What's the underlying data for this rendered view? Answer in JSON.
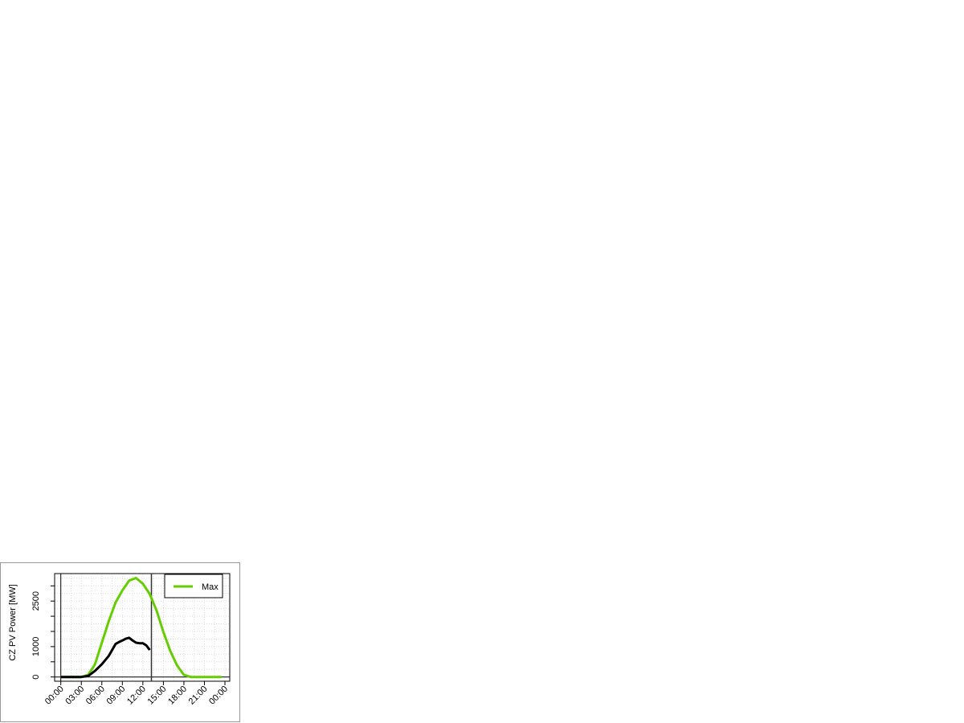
{
  "chart_data": {
    "type": "line",
    "title": "",
    "xlabel": "",
    "ylabel": "CZ PV Power [MW]",
    "x_ticks": [
      "00:00",
      "03:00",
      "06:00",
      "09:00",
      "12:00",
      "15:00",
      "18:00",
      "21:00",
      "00:00"
    ],
    "y_ticks": [
      0,
      500,
      1000,
      1500,
      2000,
      2500,
      3000
    ],
    "y_tick_labels": [
      "0",
      "1000",
      "2500"
    ],
    "xlim_hours": [
      -1,
      25
    ],
    "ylim": [
      -150,
      3400
    ],
    "grid": true,
    "legend_placement": "top-right",
    "vertical_marker_hour": 13.25,
    "series": [
      {
        "name": "Max",
        "color": "#66cc00",
        "x": [
          0,
          1,
          2,
          3,
          4,
          5,
          6,
          7,
          8,
          9,
          10,
          11,
          12,
          13,
          14,
          15,
          16,
          17,
          18,
          19,
          20,
          21,
          22,
          23,
          23.5
        ],
        "y": [
          0,
          0,
          0,
          0,
          70,
          420,
          1130,
          1830,
          2450,
          2850,
          3175,
          3260,
          3070,
          2730,
          2190,
          1480,
          860,
          380,
          70,
          0,
          0,
          0,
          0,
          0,
          0
        ]
      },
      {
        "color": "#000000",
        "x": [
          0,
          1,
          2,
          3,
          4,
          5,
          6,
          7,
          8,
          8.5,
          9,
          9.5,
          10,
          10.5,
          11,
          11.5,
          12,
          12.5,
          13
        ],
        "y": [
          0,
          0,
          0,
          0,
          35,
          200,
          420,
          690,
          1085,
          1150,
          1200,
          1260,
          1290,
          1200,
          1130,
          1110,
          1110,
          1040,
          890
        ]
      }
    ]
  }
}
